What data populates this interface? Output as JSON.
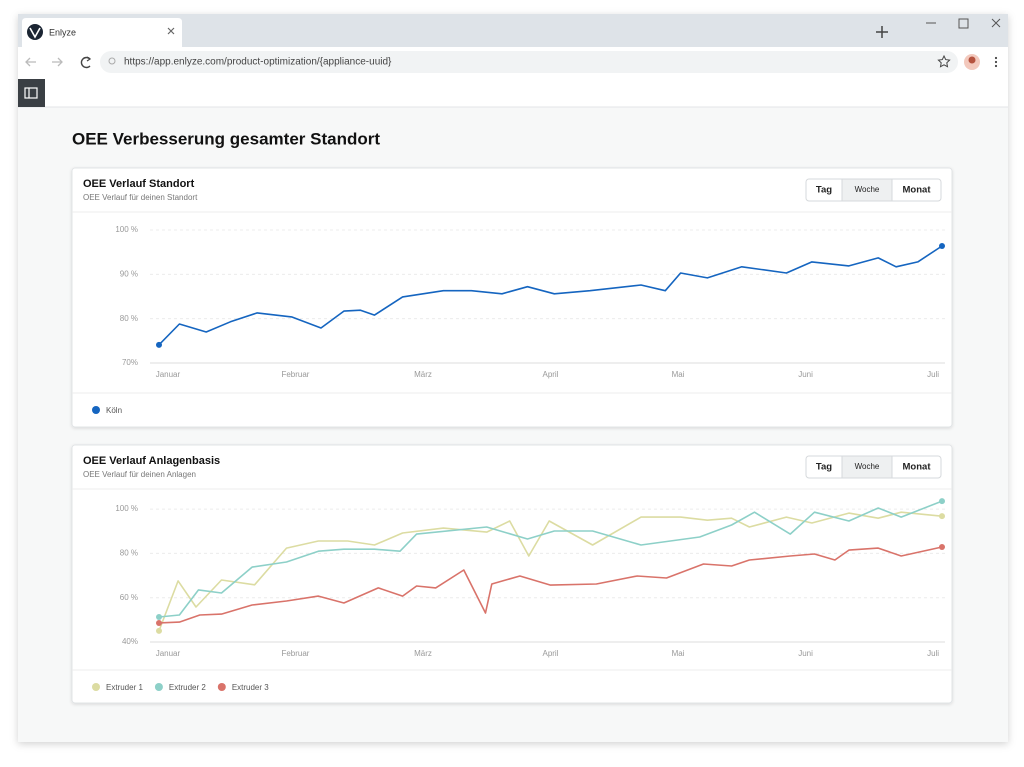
{
  "browser": {
    "tab_title": "Enlyze",
    "url": "https://app.enlyze.com/product-optimization/{appliance-uuid}"
  },
  "page": {
    "title": "OEE Verbesserung gesamter Standort"
  },
  "chart_data": [
    {
      "type": "line",
      "title": "OEE Verlauf Standort",
      "subtitle": "OEE Verlauf für deinen Standort",
      "controls": [
        "Tag",
        "Woche",
        "Monat"
      ],
      "xlim": [
        -0.07,
        6.07
      ],
      "xticks": [
        {
          "value": 0,
          "label": "Januar"
        },
        {
          "value": 1,
          "label": "Februar"
        },
        {
          "value": 2,
          "label": "März"
        },
        {
          "value": 3,
          "label": "April"
        },
        {
          "value": 4,
          "label": "Mai"
        },
        {
          "value": 5,
          "label": "Juni"
        },
        {
          "value": 6,
          "label": "Juli"
        }
      ],
      "ylim": [
        70,
        100
      ],
      "yticks": [
        {
          "value": 70,
          "label": "70%"
        },
        {
          "value": 80,
          "label": "80 %"
        },
        {
          "value": 90,
          "label": "90 %"
        },
        {
          "value": 100,
          "label": "100 %"
        }
      ],
      "grid": true,
      "series": [
        {
          "name": "Köln",
          "color": "#1565c0",
          "x": [
            -0.07,
            0.09,
            0.3,
            0.49,
            0.7,
            0.97,
            1.2,
            1.38,
            1.51,
            1.62,
            1.84,
            2.16,
            2.38,
            2.62,
            2.82,
            3.03,
            3.31,
            3.71,
            3.9,
            4.02,
            4.23,
            4.5,
            4.85,
            5.05,
            5.34,
            5.57,
            5.71,
            5.88,
            6.07
          ],
          "values": [
            74.1,
            78.8,
            77.0,
            79.3,
            81.3,
            80.4,
            77.9,
            81.7,
            81.9,
            80.8,
            84.9,
            86.3,
            86.3,
            85.6,
            87.2,
            85.6,
            86.3,
            87.6,
            86.3,
            90.3,
            89.2,
            91.7,
            90.3,
            92.8,
            91.9,
            93.7,
            91.7,
            92.8,
            96.4
          ]
        }
      ]
    },
    {
      "type": "line",
      "title": "OEE Verlauf Anlagenbasis",
      "subtitle": "OEE Verlauf für deinen Anlagen",
      "controls": [
        "Tag",
        "Woche",
        "Monat"
      ],
      "xlim": [
        -0.07,
        6.07
      ],
      "xticks": [
        {
          "value": 0,
          "label": "Januar"
        },
        {
          "value": 1,
          "label": "Februar"
        },
        {
          "value": 2,
          "label": "März"
        },
        {
          "value": 3,
          "label": "April"
        },
        {
          "value": 4,
          "label": "Mai"
        },
        {
          "value": 5,
          "label": "Juni"
        },
        {
          "value": 6,
          "label": "Juli"
        }
      ],
      "ylim": [
        40,
        105
      ],
      "yticks": [
        {
          "value": 40,
          "label": "40%"
        },
        {
          "value": 60,
          "label": "60 %"
        },
        {
          "value": 80,
          "label": "80 %"
        },
        {
          "value": 100,
          "label": "100 %"
        }
      ],
      "grid": true,
      "series": [
        {
          "name": "Extruder 1",
          "color": "#dcdca2",
          "x": [
            -0.07,
            0.08,
            0.22,
            0.42,
            0.68,
            0.93,
            1.18,
            1.41,
            1.62,
            1.84,
            2.16,
            2.5,
            2.68,
            2.83,
            2.99,
            3.33,
            3.71,
            4.02,
            4.23,
            4.42,
            4.56,
            4.85,
            5.05,
            5.34,
            5.57,
            5.75,
            6.07
          ],
          "values": [
            45,
            67.6,
            55.8,
            68,
            65.8,
            82.4,
            85.6,
            85.6,
            83.8,
            89.2,
            91.4,
            89.6,
            94.6,
            78.8,
            94.6,
            83.8,
            96.4,
            96.4,
            95,
            95.9,
            91.9,
            96.4,
            93.7,
            98.2,
            95.9,
            98.6,
            96.8
          ]
        },
        {
          "name": "Extruder 2",
          "color": "#8dd0c8",
          "x": [
            -0.07,
            0.09,
            0.24,
            0.42,
            0.66,
            0.93,
            1.18,
            1.38,
            1.62,
            1.82,
            1.95,
            2.5,
            2.82,
            3.03,
            3.33,
            3.71,
            4.17,
            4.42,
            4.6,
            4.88,
            5.07,
            5.34,
            5.57,
            5.75,
            6.07
          ],
          "values": [
            51.3,
            52.2,
            63.5,
            62.1,
            73.8,
            76.1,
            81,
            81.9,
            81.9,
            81,
            88.7,
            91.9,
            86.5,
            90.1,
            90.1,
            83.8,
            87.4,
            92.8,
            98.6,
            88.7,
            98.6,
            94.6,
            100.5,
            96.4,
            103.6
          ]
        },
        {
          "name": "Extruder 3",
          "color": "#d9736a",
          "x": [
            -0.07,
            0.09,
            0.25,
            0.42,
            0.66,
            0.93,
            1.18,
            1.38,
            1.65,
            1.84,
            1.95,
            2.1,
            2.32,
            2.49,
            2.54,
            2.76,
            3.0,
            3.36,
            3.68,
            3.91,
            4.2,
            4.42,
            4.56,
            4.88,
            5.07,
            5.23,
            5.34,
            5.57,
            5.75,
            6.07
          ],
          "values": [
            48.6,
            49,
            52.2,
            52.6,
            56.7,
            58.5,
            60.7,
            57.6,
            64.4,
            60.7,
            65.3,
            64.4,
            72.5,
            53.1,
            66.2,
            69.8,
            65.7,
            66.2,
            69.8,
            68.9,
            75.2,
            74.3,
            77,
            78.8,
            79.7,
            77,
            81.5,
            82.4,
            78.8,
            82.9
          ]
        }
      ]
    }
  ]
}
